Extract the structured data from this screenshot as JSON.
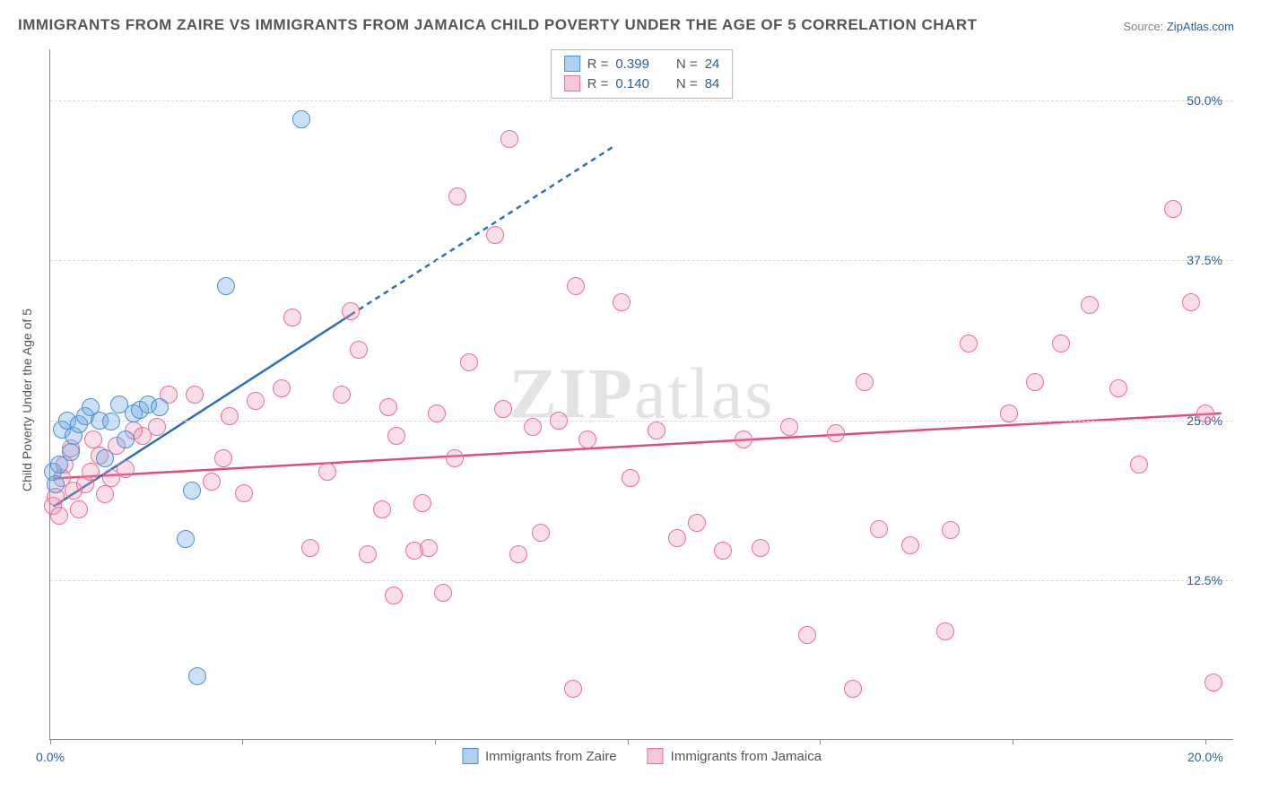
{
  "title": "IMMIGRANTS FROM ZAIRE VS IMMIGRANTS FROM JAMAICA CHILD POVERTY UNDER THE AGE OF 5 CORRELATION CHART",
  "source_prefix": "Source: ",
  "source_name": "ZipAtlas.com",
  "watermark_bold": "ZIP",
  "watermark_rest": "atlas",
  "chart": {
    "type": "scatter",
    "ylabel": "Child Poverty Under the Age of 5",
    "xlim": [
      0,
      20.5
    ],
    "ylim": [
      0,
      54
    ],
    "xtick_marks": [
      0,
      3.33,
      6.66,
      10,
      13.33,
      16.66,
      20
    ],
    "yticks": [
      {
        "v": 12.5,
        "label": "12.5%"
      },
      {
        "v": 25.0,
        "label": "25.0%"
      },
      {
        "v": 37.5,
        "label": "37.5%"
      },
      {
        "v": 50.0,
        "label": "50.0%"
      }
    ],
    "xtick_labels": [
      {
        "v": 0,
        "label": "0.0%"
      },
      {
        "v": 20,
        "label": "20.0%"
      }
    ],
    "background_color": "#ffffff",
    "grid_color": "#d8d8d8",
    "point_radius": 10,
    "colors": {
      "blue_stroke": "#2e6fb5",
      "pink_stroke": "#dc4f7c"
    },
    "series": [
      {
        "name": "Immigrants from Zaire",
        "color_class": "blue",
        "R": "0.399",
        "N": "24",
        "trend": {
          "x1": 0.05,
          "y1": 18.2,
          "x2": 5.2,
          "y2": 33.2,
          "dash_to_x": 9.8,
          "dash_to_y": 46.5
        },
        "points": [
          {
            "x": 0.05,
            "y": 21.0
          },
          {
            "x": 0.1,
            "y": 20.0
          },
          {
            "x": 0.15,
            "y": 21.5
          },
          {
            "x": 0.2,
            "y": 24.3
          },
          {
            "x": 0.3,
            "y": 25.0
          },
          {
            "x": 0.35,
            "y": 22.5
          },
          {
            "x": 0.4,
            "y": 23.8
          },
          {
            "x": 0.5,
            "y": 24.7
          },
          {
            "x": 0.6,
            "y": 25.3
          },
          {
            "x": 0.7,
            "y": 26.0
          },
          {
            "x": 0.85,
            "y": 25.0
          },
          {
            "x": 0.95,
            "y": 22.0
          },
          {
            "x": 1.05,
            "y": 24.9
          },
          {
            "x": 1.2,
            "y": 26.2
          },
          {
            "x": 1.3,
            "y": 23.5
          },
          {
            "x": 1.45,
            "y": 25.5
          },
          {
            "x": 1.55,
            "y": 25.8
          },
          {
            "x": 1.7,
            "y": 26.2
          },
          {
            "x": 1.9,
            "y": 26.0
          },
          {
            "x": 2.35,
            "y": 15.7
          },
          {
            "x": 2.45,
            "y": 19.5
          },
          {
            "x": 2.55,
            "y": 5.0
          },
          {
            "x": 3.05,
            "y": 35.5
          },
          {
            "x": 4.35,
            "y": 48.5
          }
        ]
      },
      {
        "name": "Immigrants from Jamaica",
        "color_class": "pink",
        "R": "0.140",
        "N": "84",
        "trend": {
          "x1": 0.05,
          "y1": 20.4,
          "x2": 20.3,
          "y2": 25.5
        },
        "points": [
          {
            "x": 0.05,
            "y": 18.3
          },
          {
            "x": 0.1,
            "y": 19.0
          },
          {
            "x": 0.15,
            "y": 17.5
          },
          {
            "x": 0.2,
            "y": 20.5
          },
          {
            "x": 0.25,
            "y": 21.5
          },
          {
            "x": 0.35,
            "y": 22.8
          },
          {
            "x": 0.4,
            "y": 19.5
          },
          {
            "x": 0.5,
            "y": 18.0
          },
          {
            "x": 0.6,
            "y": 20.0
          },
          {
            "x": 0.7,
            "y": 21.0
          },
          {
            "x": 0.75,
            "y": 23.5
          },
          {
            "x": 0.85,
            "y": 22.2
          },
          {
            "x": 0.95,
            "y": 19.2
          },
          {
            "x": 1.05,
            "y": 20.5
          },
          {
            "x": 1.15,
            "y": 23.0
          },
          {
            "x": 1.3,
            "y": 21.2
          },
          {
            "x": 1.45,
            "y": 24.2
          },
          {
            "x": 1.6,
            "y": 23.8
          },
          {
            "x": 1.85,
            "y": 24.5
          },
          {
            "x": 2.05,
            "y": 27.0
          },
          {
            "x": 2.5,
            "y": 27.0
          },
          {
            "x": 2.8,
            "y": 20.2
          },
          {
            "x": 3.0,
            "y": 22.0
          },
          {
            "x": 3.1,
            "y": 25.3
          },
          {
            "x": 3.35,
            "y": 19.3
          },
          {
            "x": 3.55,
            "y": 26.5
          },
          {
            "x": 4.0,
            "y": 27.5
          },
          {
            "x": 4.2,
            "y": 33.0
          },
          {
            "x": 4.5,
            "y": 15.0
          },
          {
            "x": 4.8,
            "y": 21.0
          },
          {
            "x": 5.05,
            "y": 27.0
          },
          {
            "x": 5.2,
            "y": 33.5
          },
          {
            "x": 5.35,
            "y": 30.5
          },
          {
            "x": 5.5,
            "y": 14.5
          },
          {
            "x": 5.75,
            "y": 18.0
          },
          {
            "x": 5.85,
            "y": 26.0
          },
          {
            "x": 5.95,
            "y": 11.3
          },
          {
            "x": 6.0,
            "y": 23.8
          },
          {
            "x": 6.3,
            "y": 14.8
          },
          {
            "x": 6.45,
            "y": 18.5
          },
          {
            "x": 6.55,
            "y": 15.0
          },
          {
            "x": 6.7,
            "y": 25.5
          },
          {
            "x": 6.8,
            "y": 11.5
          },
          {
            "x": 7.0,
            "y": 22.0
          },
          {
            "x": 7.05,
            "y": 42.5
          },
          {
            "x": 7.25,
            "y": 29.5
          },
          {
            "x": 7.7,
            "y": 39.5
          },
          {
            "x": 7.85,
            "y": 25.9
          },
          {
            "x": 7.95,
            "y": 47.0
          },
          {
            "x": 8.1,
            "y": 14.5
          },
          {
            "x": 8.35,
            "y": 24.5
          },
          {
            "x": 8.5,
            "y": 16.2
          },
          {
            "x": 8.8,
            "y": 25.0
          },
          {
            "x": 9.05,
            "y": 4.0
          },
          {
            "x": 9.1,
            "y": 35.5
          },
          {
            "x": 9.3,
            "y": 23.5
          },
          {
            "x": 9.9,
            "y": 34.2
          },
          {
            "x": 10.05,
            "y": 20.5
          },
          {
            "x": 10.5,
            "y": 24.2
          },
          {
            "x": 10.85,
            "y": 15.8
          },
          {
            "x": 11.2,
            "y": 17.0
          },
          {
            "x": 11.65,
            "y": 14.8
          },
          {
            "x": 12.0,
            "y": 23.5
          },
          {
            "x": 12.3,
            "y": 15.0
          },
          {
            "x": 12.8,
            "y": 24.5
          },
          {
            "x": 13.1,
            "y": 8.2
          },
          {
            "x": 13.6,
            "y": 24.0
          },
          {
            "x": 13.9,
            "y": 4.0
          },
          {
            "x": 14.1,
            "y": 28.0
          },
          {
            "x": 14.35,
            "y": 16.5
          },
          {
            "x": 14.9,
            "y": 15.2
          },
          {
            "x": 15.5,
            "y": 8.5
          },
          {
            "x": 15.6,
            "y": 16.4
          },
          {
            "x": 15.9,
            "y": 31.0
          },
          {
            "x": 16.6,
            "y": 25.5
          },
          {
            "x": 17.05,
            "y": 28.0
          },
          {
            "x": 17.5,
            "y": 31.0
          },
          {
            "x": 18.0,
            "y": 34.0
          },
          {
            "x": 18.5,
            "y": 27.5
          },
          {
            "x": 18.85,
            "y": 21.5
          },
          {
            "x": 19.45,
            "y": 41.5
          },
          {
            "x": 19.75,
            "y": 34.2
          },
          {
            "x": 20.0,
            "y": 25.5
          },
          {
            "x": 20.15,
            "y": 4.5
          }
        ]
      }
    ]
  },
  "legend_top_prefix_R": "R =",
  "legend_top_prefix_N": "N ="
}
